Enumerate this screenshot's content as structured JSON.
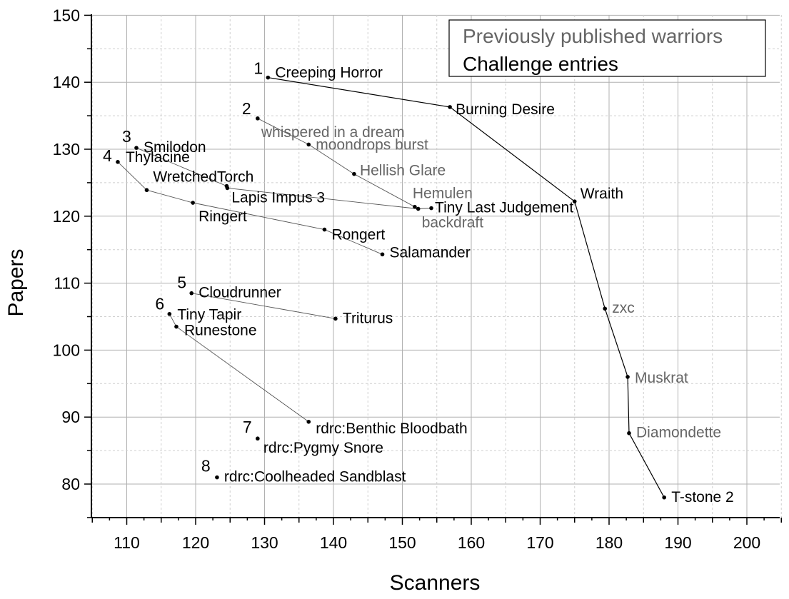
{
  "chart_data": {
    "type": "scatter",
    "xlabel": "Scanners",
    "ylabel": "Papers",
    "xlim": [
      105,
      205
    ],
    "ylim": [
      75,
      150
    ],
    "x_ticks": [
      110,
      120,
      130,
      140,
      150,
      160,
      170,
      180,
      190,
      200
    ],
    "y_ticks": [
      80,
      90,
      100,
      110,
      120,
      130,
      140,
      150
    ],
    "grid": "dashed minor and solid major gridlines",
    "legend": {
      "placement": "top-right",
      "entries": [
        {
          "name": "Previously published warriors",
          "color": "#666666"
        },
        {
          "name": "Challenge entries",
          "color": "#000000"
        }
      ]
    },
    "colors": {
      "previous": "#666666",
      "challenge": "#000000"
    },
    "points": [
      {
        "id": "creeping-horror",
        "label": "Creeping Horror",
        "x": 130.5,
        "y": 140.7,
        "group": "challenge"
      },
      {
        "id": "burning-desire",
        "label": "Burning Desire",
        "x": 156.9,
        "y": 136.3,
        "group": "challenge"
      },
      {
        "id": "wraith",
        "label": "Wraith",
        "x": 175.0,
        "y": 122.2,
        "group": "challenge"
      },
      {
        "id": "zxc",
        "label": "zxc",
        "x": 179.4,
        "y": 106.2,
        "group": "previous"
      },
      {
        "id": "muskrat",
        "label": "Muskrat",
        "x": 182.7,
        "y": 96.0,
        "group": "previous"
      },
      {
        "id": "diamondette",
        "label": "Diamondette",
        "x": 182.9,
        "y": 87.6,
        "group": "previous"
      },
      {
        "id": "t-stone-2",
        "label": "T-stone 2",
        "x": 188.0,
        "y": 78.0,
        "group": "challenge"
      },
      {
        "id": "whispered-in-a-dream",
        "label": "whispered in a dream",
        "x": 129.0,
        "y": 134.6,
        "group": "previous"
      },
      {
        "id": "moondrops-burst",
        "label": "moondrops burst",
        "x": 136.4,
        "y": 130.7,
        "group": "previous"
      },
      {
        "id": "hellish-glare",
        "label": "Hellish Glare",
        "x": 143.0,
        "y": 126.3,
        "group": "previous"
      },
      {
        "id": "hemulen",
        "label": "Hemulen",
        "x": 151.8,
        "y": 121.4,
        "group": "previous"
      },
      {
        "id": "backdraft",
        "label": "backdraft",
        "x": 152.3,
        "y": 121.1,
        "group": "previous"
      },
      {
        "id": "tiny-last-judgement",
        "label": "Tiny Last Judgement",
        "x": 154.2,
        "y": 121.2,
        "group": "challenge"
      },
      {
        "id": "smilodon",
        "label": "Smilodon",
        "x": 111.4,
        "y": 130.2,
        "group": "challenge"
      },
      {
        "id": "wretchedtorch",
        "label": "WretchedTorch",
        "x": 124.5,
        "y": 124.5,
        "group": "challenge"
      },
      {
        "id": "lapis-impus-3",
        "label": "Lapis Impus 3",
        "x": 124.6,
        "y": 124.2,
        "group": "challenge"
      },
      {
        "id": "thylacine",
        "label": "Thylacine",
        "x": 108.7,
        "y": 128.1,
        "group": "challenge"
      },
      {
        "id": "p4-a",
        "label": "",
        "x": 112.9,
        "y": 123.9,
        "group": "challenge"
      },
      {
        "id": "ringert",
        "label": "Ringert",
        "x": 119.6,
        "y": 122.0,
        "group": "challenge"
      },
      {
        "id": "rongert",
        "label": "Rongert",
        "x": 138.7,
        "y": 118.0,
        "group": "challenge"
      },
      {
        "id": "salamander",
        "label": "Salamander",
        "x": 147.1,
        "y": 114.3,
        "group": "challenge"
      },
      {
        "id": "cloudrunner",
        "label": "Cloudrunner",
        "x": 119.4,
        "y": 108.5,
        "group": "challenge"
      },
      {
        "id": "triturus",
        "label": "Triturus",
        "x": 140.3,
        "y": 104.7,
        "group": "challenge"
      },
      {
        "id": "tiny-tapir",
        "label": "Tiny Tapir",
        "x": 116.2,
        "y": 105.4,
        "group": "challenge"
      },
      {
        "id": "runestone",
        "label": "Runestone",
        "x": 117.2,
        "y": 103.5,
        "group": "challenge"
      },
      {
        "id": "rdrc-benthic-bloodbath",
        "label": "rdrc:Benthic Bloodbath",
        "x": 136.4,
        "y": 89.3,
        "group": "challenge"
      },
      {
        "id": "rdrc-pygmy-snore",
        "label": "rdrc:Pygmy Snore",
        "x": 129.0,
        "y": 86.8,
        "group": "challenge"
      },
      {
        "id": "rdrc-coolheaded-sandblast",
        "label": "rdrc:Coolheaded Sandblast",
        "x": 123.1,
        "y": 81.0,
        "group": "challenge"
      }
    ],
    "fronts": [
      {
        "label": "1",
        "points": [
          "creeping-horror",
          "burning-desire",
          "wraith",
          "zxc",
          "muskrat",
          "diamondette",
          "t-stone-2"
        ]
      },
      {
        "label": "2",
        "points": [
          "whispered-in-a-dream",
          "moondrops-burst",
          "hellish-glare",
          "hemulen",
          "backdraft",
          "tiny-last-judgement"
        ]
      },
      {
        "label": "3",
        "points": [
          "smilodon",
          "wretchedtorch",
          "lapis-impus-3",
          "backdraft"
        ]
      },
      {
        "label": "4",
        "points": [
          "thylacine",
          "p4-a",
          "ringert",
          "rongert",
          "salamander"
        ]
      },
      {
        "label": "5",
        "points": [
          "cloudrunner",
          "triturus"
        ]
      },
      {
        "label": "6",
        "points": [
          "tiny-tapir",
          "runestone",
          "rdrc-benthic-bloodbath"
        ]
      },
      {
        "label": "7",
        "points": [
          "rdrc-pygmy-snore"
        ]
      },
      {
        "label": "8",
        "points": [
          "rdrc-coolheaded-sandblast"
        ]
      }
    ]
  }
}
